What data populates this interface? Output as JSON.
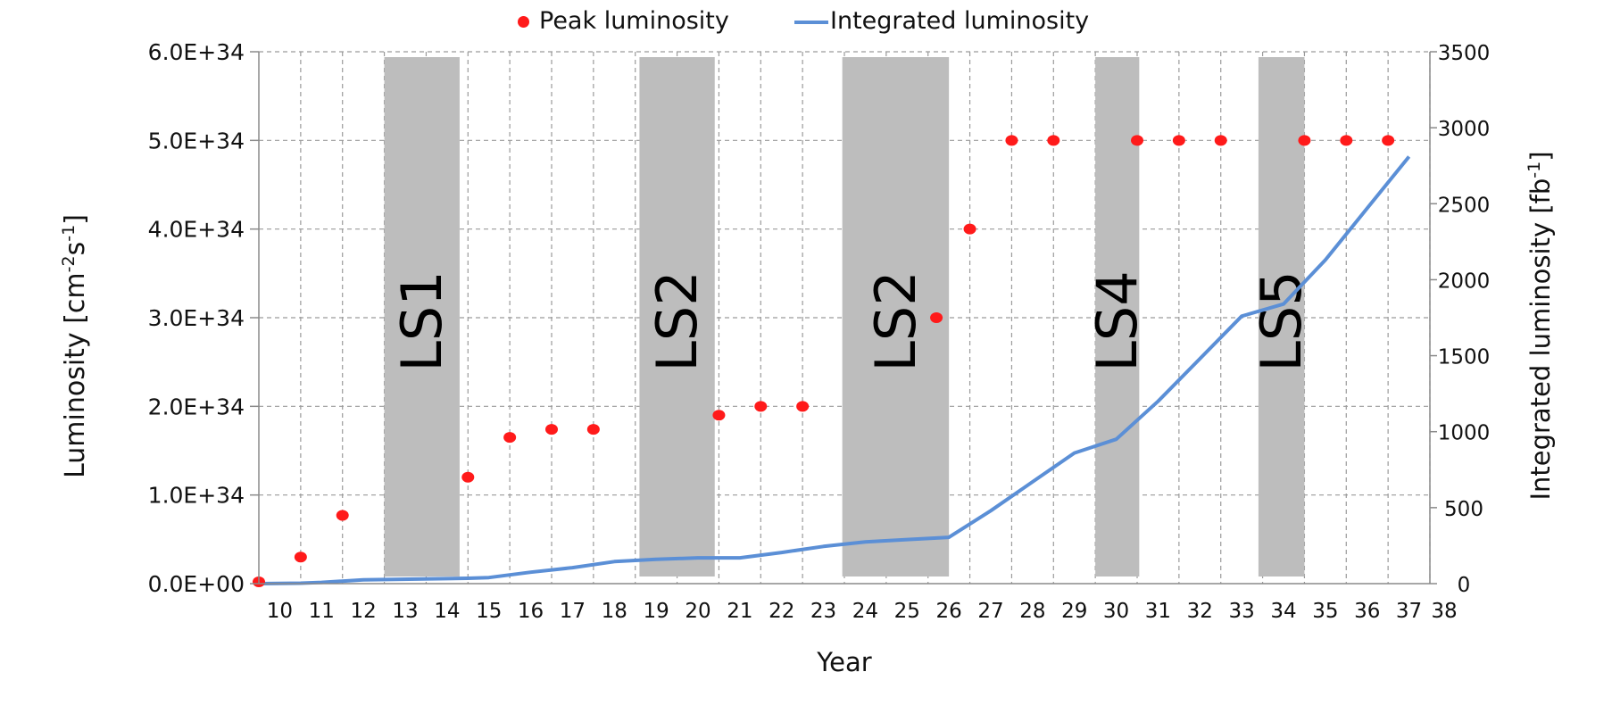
{
  "chart_data": {
    "type": "scatter",
    "title": "",
    "xlabel": "Year",
    "ylabel_left": "Luminosity [cm-2s-1]",
    "ylabel_right": "Integrated luminosity [fb-1]",
    "x_ticks": [
      "10",
      "11",
      "12",
      "13",
      "14",
      "15",
      "16",
      "17",
      "18",
      "19",
      "20",
      "21",
      "22",
      "23",
      "24",
      "25",
      "26",
      "27",
      "28",
      "29",
      "30",
      "31",
      "32",
      "33",
      "34",
      "35",
      "36",
      "37",
      "38"
    ],
    "xlim": [
      10,
      38
    ],
    "y_left": {
      "lim": [
        0,
        6e+34
      ],
      "ticks": [
        0,
        1e+34,
        2e+34,
        3e+34,
        4e+34,
        5e+34,
        6e+34
      ],
      "tick_labels": [
        "0.0E+00",
        "1.0E+34",
        "2.0E+34",
        "3.0E+34",
        "4.0E+34",
        "5.0E+34",
        "6.0E+34"
      ]
    },
    "y_right": {
      "lim": [
        0,
        3500
      ],
      "ticks": [
        0,
        500,
        1000,
        1500,
        2000,
        2500,
        3000,
        3500
      ],
      "tick_labels": [
        "0",
        "500",
        "1000",
        "1500",
        "2000",
        "2500",
        "3000",
        "3500"
      ]
    },
    "grid": true,
    "legend_position": "top-center",
    "series": [
      {
        "name": "Peak luminosity",
        "kind": "scatter",
        "axis": "left",
        "color": "#ff1a1a",
        "points": [
          {
            "x": 10.0,
            "y": 2e+32
          },
          {
            "x": 11.0,
            "y": 3e+33
          },
          {
            "x": 12.0,
            "y": 7.7e+33
          },
          {
            "x": 15.0,
            "y": 1.2e+34
          },
          {
            "x": 16.0,
            "y": 1.65e+34
          },
          {
            "x": 17.0,
            "y": 1.74e+34
          },
          {
            "x": 18.0,
            "y": 1.74e+34
          },
          {
            "x": 21.0,
            "y": 1.9e+34
          },
          {
            "x": 22.0,
            "y": 2e+34
          },
          {
            "x": 23.0,
            "y": 2e+34
          },
          {
            "x": 26.2,
            "y": 3e+34
          },
          {
            "x": 27.0,
            "y": 4e+34
          },
          {
            "x": 28.0,
            "y": 5e+34
          },
          {
            "x": 29.0,
            "y": 5e+34
          },
          {
            "x": 31.0,
            "y": 5e+34
          },
          {
            "x": 32.0,
            "y": 5e+34
          },
          {
            "x": 33.0,
            "y": 5e+34
          },
          {
            "x": 35.0,
            "y": 5e+34
          },
          {
            "x": 36.0,
            "y": 5e+34
          },
          {
            "x": 37.0,
            "y": 5e+34
          }
        ]
      },
      {
        "name": "Integrated luminosity",
        "kind": "line",
        "axis": "right",
        "color": "#5b8fd6",
        "points": [
          {
            "x": 10,
            "y": 0
          },
          {
            "x": 11,
            "y": 3
          },
          {
            "x": 11.5,
            "y": 8
          },
          {
            "x": 12.5,
            "y": 25
          },
          {
            "x": 15,
            "y": 35
          },
          {
            "x": 15.5,
            "y": 40
          },
          {
            "x": 16.5,
            "y": 75
          },
          {
            "x": 17.5,
            "y": 105
          },
          {
            "x": 18.5,
            "y": 145
          },
          {
            "x": 19.5,
            "y": 160
          },
          {
            "x": 20.5,
            "y": 170
          },
          {
            "x": 21.5,
            "y": 170
          },
          {
            "x": 22.5,
            "y": 205
          },
          {
            "x": 23.5,
            "y": 245
          },
          {
            "x": 24.5,
            "y": 275
          },
          {
            "x": 25.5,
            "y": 290
          },
          {
            "x": 26.5,
            "y": 305
          },
          {
            "x": 27.5,
            "y": 480
          },
          {
            "x": 28.5,
            "y": 670
          },
          {
            "x": 29.5,
            "y": 860
          },
          {
            "x": 30.5,
            "y": 950
          },
          {
            "x": 31.5,
            "y": 1200
          },
          {
            "x": 32.5,
            "y": 1480
          },
          {
            "x": 33.5,
            "y": 1760
          },
          {
            "x": 34.5,
            "y": 1840
          },
          {
            "x": 35.5,
            "y": 2130
          },
          {
            "x": 36.5,
            "y": 2470
          },
          {
            "x": 37.5,
            "y": 2810
          }
        ]
      }
    ],
    "shutdowns": [
      {
        "label": "LS1",
        "x_start": 13.0,
        "x_end": 14.8
      },
      {
        "label": "LS2",
        "x_start": 19.1,
        "x_end": 20.9
      },
      {
        "label": "LS2",
        "x_start": 23.95,
        "x_end": 26.5
      },
      {
        "label": "LS4",
        "x_start": 30.0,
        "x_end": 31.05
      },
      {
        "label": "LS5",
        "x_start": 33.9,
        "x_end": 35.0
      }
    ]
  }
}
